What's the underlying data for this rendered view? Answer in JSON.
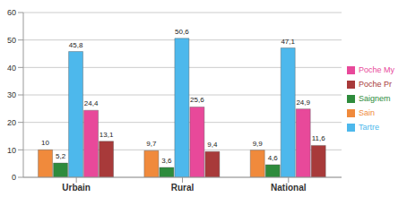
{
  "chart_data": {
    "type": "bar",
    "categories": [
      "Urbain",
      "Rural",
      "National"
    ],
    "series": [
      {
        "name": "Sain",
        "color": "#f08a3c",
        "values": [
          10,
          9.7,
          9.9
        ],
        "value_labels": [
          "10",
          "9,7",
          "9,9"
        ]
      },
      {
        "name": "Saignem",
        "color": "#2e8b3c",
        "values": [
          5.2,
          3.6,
          4.6
        ],
        "value_labels": [
          "5,2",
          "3,6",
          "4,6"
        ]
      },
      {
        "name": "Tartre",
        "color": "#4db8ec",
        "values": [
          45.8,
          50.6,
          47.1
        ],
        "value_labels": [
          "45,8",
          "50,6",
          "47,1"
        ]
      },
      {
        "name": "Poche My",
        "color": "#e8499a",
        "values": [
          24.4,
          25.6,
          24.9
        ],
        "value_labels": [
          "24,4",
          "25,6",
          "24,9"
        ]
      },
      {
        "name": "Poche Pr",
        "color": "#a83a3a",
        "values": [
          13.1,
          9.4,
          11.6
        ],
        "value_labels": [
          "13,1",
          "9,4",
          "11,6"
        ]
      }
    ],
    "ylim": [
      0,
      60
    ],
    "yticks": [
      0,
      10,
      20,
      30,
      40,
      50,
      60
    ],
    "grid": true,
    "data_labels": true,
    "legend": "right"
  }
}
